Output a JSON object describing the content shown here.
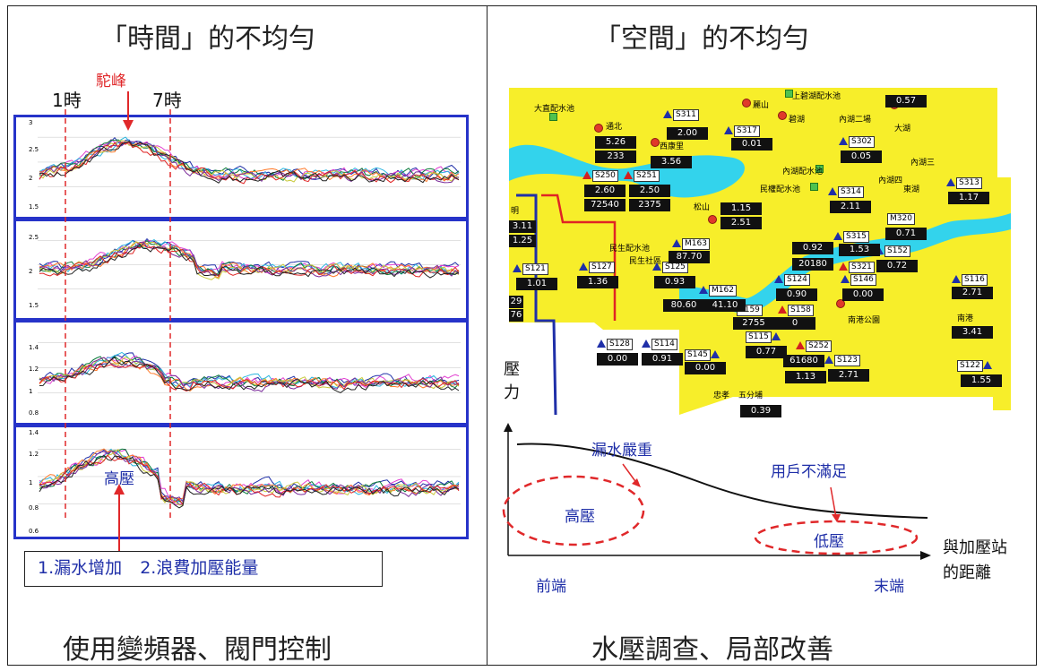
{
  "left": {
    "title": "「時間」的不均勻",
    "peak_label": "駝峰",
    "marker_start": "1時",
    "marker_end": "7時",
    "high_pressure_label": "高壓",
    "callout_items": [
      "1.漏水增加",
      "2.浪費加壓能量"
    ],
    "footer": "使用變頻器、閥門控制",
    "panels": [
      {
        "ticks": [
          "3",
          "2.5",
          "2",
          "1.5"
        ]
      },
      {
        "ticks": [
          "2.5",
          "2",
          "1.5"
        ]
      },
      {
        "ticks": [
          "1.4",
          "1.2",
          "1",
          "0.8"
        ]
      },
      {
        "ticks": [
          "1.4",
          "1.2",
          "1",
          "0.8",
          "0.6"
        ]
      }
    ]
  },
  "right": {
    "title": "「空間」的不均勻",
    "footer": "水壓調查、局部改善",
    "map": {
      "places": [
        "大直配水池",
        "上碧湖配水池",
        "麗山",
        "碧湖",
        "內湖二場",
        "大湖",
        "通北",
        "西康里",
        "內湖配水池",
        "內湖三",
        "內湖四",
        "東湖",
        "民權配水池",
        "松山",
        "民生配水池",
        "民生社區",
        "南港公園",
        "南港",
        "忠孝",
        "五分埔",
        "明"
      ],
      "stations": [
        "S311",
        "S317",
        "S302",
        "S250",
        "S251",
        "S314",
        "S313",
        "M163",
        "M320",
        "S315",
        "S152",
        "S121",
        "S127",
        "S125",
        "S321",
        "S124",
        "S146",
        "S116",
        "M162",
        "S159",
        "S158",
        "S115",
        "S252",
        "S123",
        "S128",
        "S114",
        "S145",
        "S122"
      ],
      "values": [
        "0.57",
        "2.00",
        "5.26",
        "233",
        "3.56",
        "0.01",
        "0.05",
        "2.60",
        "2.50",
        "72540",
        "2375",
        "2.11",
        "1.17",
        "1.15",
        "2.51",
        "3.11",
        "1.25",
        "87.70",
        "0.71",
        "0.92",
        "1.53",
        "20180",
        "0.72",
        "1.01",
        "1.36",
        "0.93",
        "0.00",
        "2.71",
        "0.90",
        "80.60",
        "41.10",
        "2755",
        "0",
        "29",
        "76",
        "0.77",
        "61680",
        "2.71",
        "1.13",
        "0.00",
        "0.91",
        "0.00",
        "3.41",
        "1.55",
        "0.39"
      ]
    },
    "chart": {
      "ylabel": "壓力",
      "xlabel": "與加壓站的距離",
      "x_start": "前端",
      "x_end": "末端",
      "leak_label": "漏水嚴重",
      "unmet_label": "用戶不滿足",
      "high_label": "高壓",
      "low_label": "低壓"
    }
  },
  "colors": {
    "panel_border": "#2633c9",
    "marker": "#e0282a",
    "map_fill": "#f7ee2a",
    "river": "#33d3ec"
  }
}
